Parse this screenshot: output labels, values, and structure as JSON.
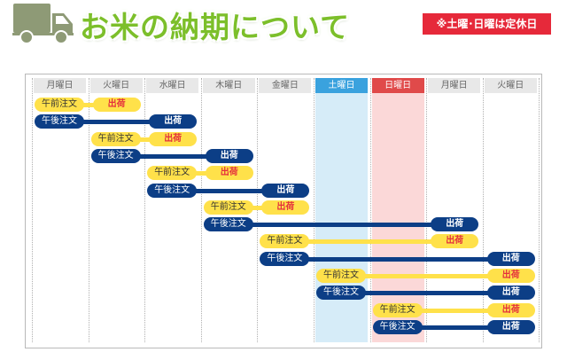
{
  "header": {
    "title": "お米の納期について",
    "notice": "※土曜･日曜は定休日",
    "truck_icon": "truck-icon"
  },
  "colors": {
    "title_green": "#7cbf2a",
    "notice_red": "#e6293a",
    "morning_yellow": "#ffe14a",
    "afternoon_navy": "#0c3e86",
    "saturday_blue": "#3aa2de",
    "sunday_red": "#e04a4a",
    "ship_text_red": "#e4313d"
  },
  "schedule": {
    "days": [
      {
        "label": "月曜日",
        "type": "weekday"
      },
      {
        "label": "火曜日",
        "type": "weekday"
      },
      {
        "label": "水曜日",
        "type": "weekday"
      },
      {
        "label": "木曜日",
        "type": "weekday"
      },
      {
        "label": "金曜日",
        "type": "weekday"
      },
      {
        "label": "土曜日",
        "type": "saturday"
      },
      {
        "label": "日曜日",
        "type": "sunday"
      },
      {
        "label": "月曜日",
        "type": "weekday"
      },
      {
        "label": "火曜日",
        "type": "weekday"
      }
    ],
    "rows": [
      {
        "order_label": "午前注文",
        "ship_label": "出荷",
        "kind": "am",
        "order_day": 0,
        "ship_day": 1
      },
      {
        "order_label": "午後注文",
        "ship_label": "出荷",
        "kind": "pm",
        "order_day": 0,
        "ship_day": 2
      },
      {
        "order_label": "午前注文",
        "ship_label": "出荷",
        "kind": "am",
        "order_day": 1,
        "ship_day": 2
      },
      {
        "order_label": "午後注文",
        "ship_label": "出荷",
        "kind": "pm",
        "order_day": 1,
        "ship_day": 3
      },
      {
        "order_label": "午前注文",
        "ship_label": "出荷",
        "kind": "am",
        "order_day": 2,
        "ship_day": 3
      },
      {
        "order_label": "午後注文",
        "ship_label": "出荷",
        "kind": "pm",
        "order_day": 2,
        "ship_day": 4
      },
      {
        "order_label": "午前注文",
        "ship_label": "出荷",
        "kind": "am",
        "order_day": 3,
        "ship_day": 4
      },
      {
        "order_label": "午後注文",
        "ship_label": "出荷",
        "kind": "pm",
        "order_day": 3,
        "ship_day": 7
      },
      {
        "order_label": "午前注文",
        "ship_label": "出荷",
        "kind": "am",
        "order_day": 4,
        "ship_day": 7
      },
      {
        "order_label": "午後注文",
        "ship_label": "出荷",
        "kind": "pm",
        "order_day": 4,
        "ship_day": 8
      },
      {
        "order_label": "午前注文",
        "ship_label": "出荷",
        "kind": "am",
        "order_day": 5,
        "ship_day": 8
      },
      {
        "order_label": "午後注文",
        "ship_label": "出荷",
        "kind": "pm",
        "order_day": 5,
        "ship_day": 8
      },
      {
        "order_label": "午前注文",
        "ship_label": "出荷",
        "kind": "am",
        "order_day": 6,
        "ship_day": 8
      },
      {
        "order_label": "午後注文",
        "ship_label": "出荷",
        "kind": "pm",
        "order_day": 6,
        "ship_day": 8
      }
    ]
  }
}
